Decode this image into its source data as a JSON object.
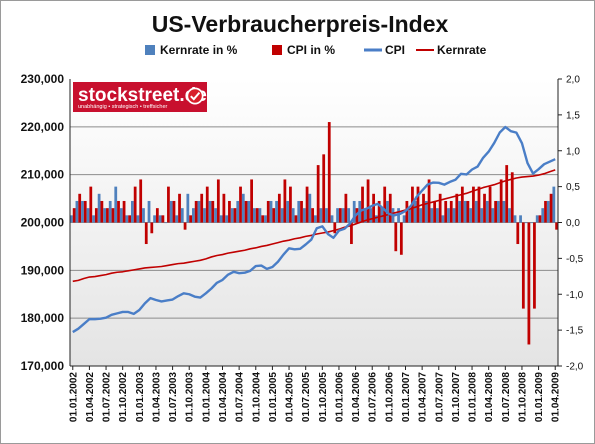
{
  "chart_data": {
    "type": "bar+line",
    "title": "US-Verbraucherpreis-Index",
    "legend_position": "top",
    "legend": [
      {
        "key": "kern_pct",
        "label": "Kernrate in %"
      },
      {
        "key": "cpi_pct",
        "label": "CPI in %"
      },
      {
        "key": "cpi",
        "label": "CPI"
      },
      {
        "key": "kernrate",
        "label": "Kernrate"
      }
    ],
    "colors": {
      "kern_pct_bar": "#4f81bd",
      "cpi_pct_bar": "#c00000",
      "cpi_line": "#4a7ec7",
      "kernrate_line": "#c00000",
      "grid": "#8c8c8c",
      "plot_bg_top": "#ffffff",
      "plot_bg_bottom": "#e4e4e4",
      "logo_bg": "#c8102e"
    },
    "left_axis": {
      "ylim": [
        170000,
        230000
      ],
      "ticks": [
        "170,000",
        "180,000",
        "190,000",
        "200,000",
        "210,000",
        "220,000",
        "230,000"
      ]
    },
    "right_axis": {
      "ylim": [
        -2.0,
        2.0
      ],
      "ticks": [
        "-2,0",
        "-1,5",
        "-1,0",
        "-0,5",
        "0,0",
        "0,5",
        "1,0",
        "1,5",
        "2,0"
      ]
    },
    "grid": true,
    "x_tick_labels": [
      "01.01.2002",
      "01.04.2002",
      "01.07.2002",
      "01.10.2002",
      "01.01.2003",
      "01.04.2003",
      "01.07.2003",
      "01.10.2003",
      "01.01.2004",
      "01.04.2004",
      "01.07.2004",
      "01.10.2004",
      "01.01.2005",
      "01.04.2005",
      "01.07.2005",
      "01.10.2005",
      "01.01.2006",
      "01.04.2006",
      "01.07.2006",
      "01.10.2006",
      "01.01.2007",
      "01.04.2007",
      "01.07.2007",
      "01.10.2007",
      "01.01.2008",
      "01.04.2008",
      "01.07.2008",
      "01.10.2008",
      "01.01.2009",
      "01.04.2009"
    ],
    "months": 88,
    "series": [
      {
        "key": "cpi",
        "name": "CPI",
        "axis": "left",
        "type": "line",
        "values": [
          177100,
          177800,
          178800,
          179800,
          179800,
          179900,
          180100,
          180700,
          181000,
          181300,
          181300,
          180900,
          181700,
          183100,
          184200,
          183800,
          183500,
          183700,
          183900,
          184600,
          185200,
          185000,
          184500,
          184300,
          185200,
          186200,
          187400,
          188000,
          189100,
          189700,
          189400,
          189500,
          189900,
          190900,
          191000,
          190300,
          190700,
          191800,
          193300,
          194600,
          194400,
          194500,
          195400,
          196400,
          198800,
          199200,
          197600,
          196800,
          198300,
          198700,
          199800,
          201500,
          202500,
          202900,
          203500,
          203900,
          202900,
          201800,
          201500,
          201800,
          202416,
          203499,
          205352,
          206686,
          207949,
          208352,
          208299,
          207917,
          208490,
          208936,
          210177,
          210036,
          211080,
          211693,
          213528,
          214823,
          216632,
          218815,
          219964,
          219086,
          218783,
          216573,
          212425,
          210228,
          211143,
          212193,
          212709,
          213240
        ]
      },
      {
        "key": "kernrate",
        "name": "Kernrate",
        "axis": "left",
        "type": "line",
        "values": [
          187700,
          187900,
          188300,
          188600,
          188700,
          188900,
          189100,
          189400,
          189600,
          189700,
          189900,
          190100,
          190300,
          190500,
          190600,
          190700,
          190800,
          191000,
          191200,
          191400,
          191500,
          191700,
          191900,
          192100,
          192400,
          192800,
          193100,
          193300,
          193600,
          193800,
          194000,
          194200,
          194500,
          194700,
          195000,
          195200,
          195500,
          195800,
          196100,
          196300,
          196600,
          196800,
          197100,
          197300,
          197600,
          197800,
          198000,
          198300,
          198600,
          199000,
          199300,
          199700,
          200100,
          200500,
          200800,
          201100,
          201400,
          201700,
          202000,
          202300,
          202600,
          202900,
          203300,
          203700,
          204000,
          204300,
          204600,
          204900,
          205200,
          205500,
          205800,
          206100,
          206500,
          206900,
          207300,
          207600,
          207900,
          208300,
          208700,
          209000,
          209300,
          209500,
          209600,
          209700,
          209900,
          210200,
          210600,
          211000
        ]
      },
      {
        "key": "kern_pct",
        "name": "Kernrate in %",
        "axis": "right",
        "type": "bar",
        "values": [
          0.1,
          0.3,
          0.3,
          0.2,
          0.1,
          0.4,
          0.2,
          0.3,
          0.5,
          0.2,
          0.1,
          0.3,
          0.1,
          0.2,
          0.3,
          0.1,
          0.1,
          0.0,
          0.3,
          0.1,
          0.2,
          0.4,
          0.2,
          0.3,
          0.2,
          0.3,
          0.2,
          0.1,
          0.1,
          0.2,
          0.3,
          0.4,
          0.3,
          0.2,
          0.2,
          0.1,
          0.3,
          0.3,
          0.2,
          0.3,
          0.2,
          0.3,
          0.2,
          0.4,
          0.1,
          0.2,
          0.2,
          0.1,
          0.2,
          0.2,
          0.2,
          0.3,
          0.3,
          0.2,
          0.2,
          0.1,
          0.2,
          0.3,
          0.2,
          0.2,
          0.1,
          0.2,
          0.3,
          0.2,
          0.3,
          0.2,
          0.2,
          0.1,
          0.2,
          0.2,
          0.3,
          0.3,
          0.2,
          0.3,
          0.2,
          0.3,
          0.2,
          0.3,
          0.3,
          0.2,
          0.1,
          0.1,
          0.0,
          0.0,
          0.1,
          0.2,
          0.3,
          0.5
        ]
      },
      {
        "key": "cpi_pct",
        "name": "CPI in %",
        "axis": "right",
        "type": "bar",
        "values": [
          0.2,
          0.4,
          0.3,
          0.5,
          0.2,
          0.3,
          0.2,
          0.2,
          0.3,
          0.3,
          0.1,
          0.5,
          0.6,
          -0.3,
          -0.15,
          0.2,
          0.1,
          0.5,
          0.3,
          0.4,
          -0.1,
          0.1,
          0.3,
          0.4,
          0.5,
          0.3,
          0.6,
          0.4,
          0.3,
          0.2,
          0.5,
          0.3,
          0.6,
          0.2,
          0.1,
          0.3,
          0.2,
          0.4,
          0.6,
          0.5,
          0.1,
          0.3,
          0.5,
          0.2,
          0.8,
          0.95,
          1.4,
          -0.15,
          0.2,
          0.4,
          -0.3,
          0.2,
          0.5,
          0.6,
          0.4,
          0.3,
          0.5,
          0.4,
          -0.4,
          -0.45,
          0.3,
          0.5,
          0.5,
          0.4,
          0.6,
          0.3,
          0.4,
          0.3,
          0.3,
          0.4,
          0.5,
          0.3,
          0.5,
          0.5,
          0.4,
          0.5,
          0.3,
          0.6,
          0.8,
          0.7,
          -0.3,
          -1.2,
          -1.7,
          -1.2,
          0.1,
          0.3,
          0.4,
          -0.1
        ]
      }
    ]
  },
  "logo": {
    "name": "stockstreet.de",
    "tagline": "unabhängig • strategisch • treffsicher"
  }
}
